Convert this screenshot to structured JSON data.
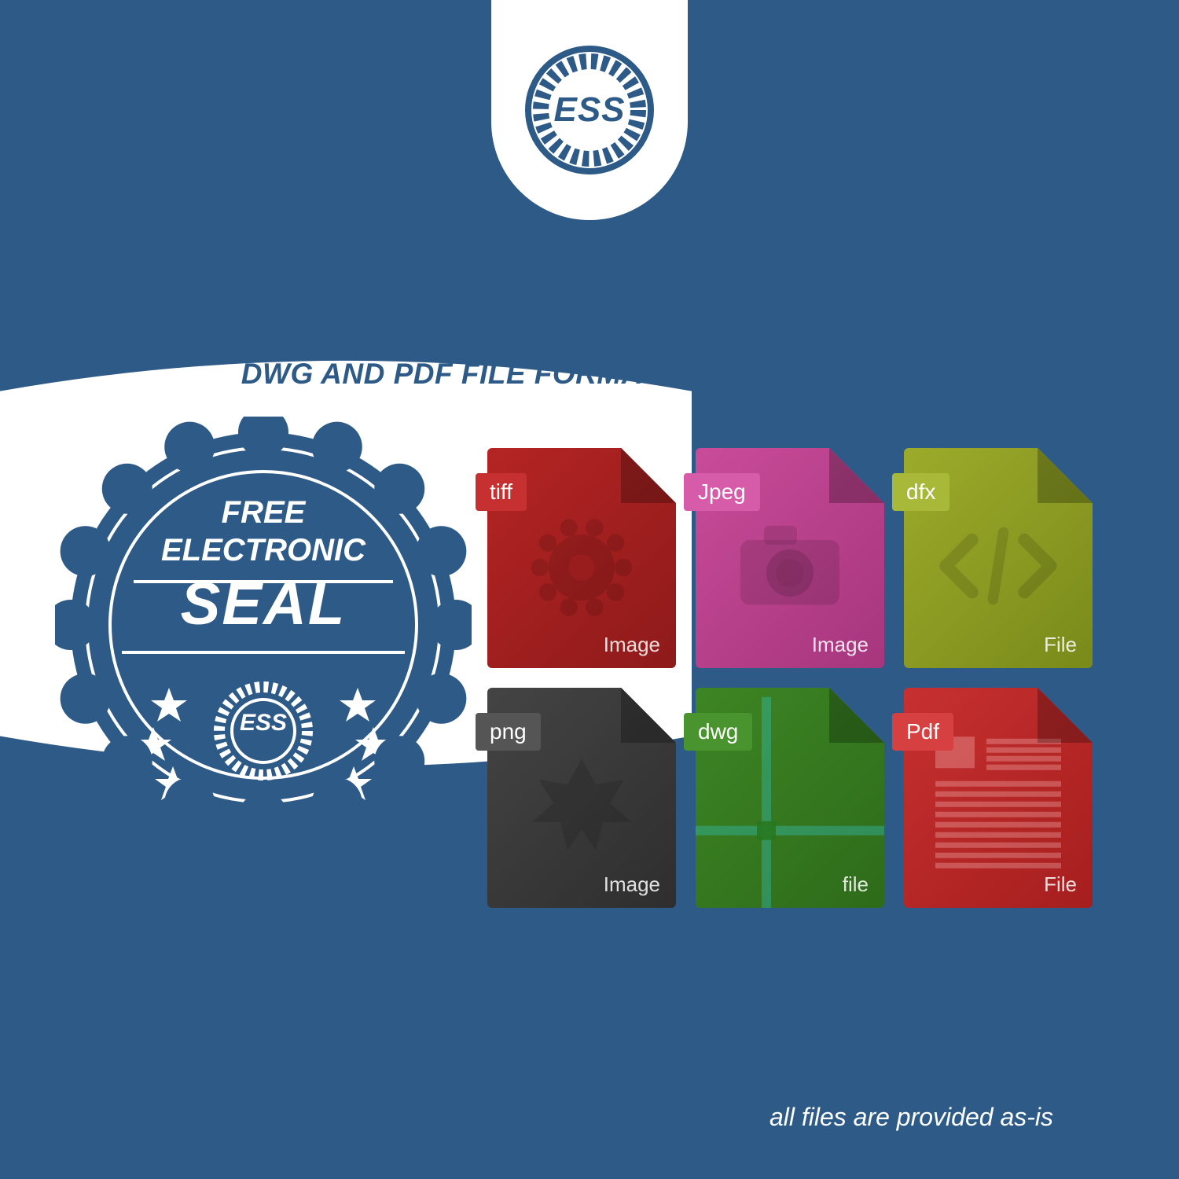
{
  "colors": {
    "primary": "#2d5a87",
    "white": "#ffffff"
  },
  "logo": {
    "text": "ESS",
    "gear_color": "#2d5a87"
  },
  "headline": "INCLUDES FREE ELECTRONIC SEALS DELIVERED IN TIF, JPG, PNG, DXF, DWG AND PDF FILE FORMATS WITH PURCHASE",
  "seal": {
    "line1": "FREE",
    "line2": "ELECTRONIC",
    "line3": "SEAL",
    "ess": "ESS",
    "fill": "#2d5a87",
    "stroke": "#ffffff"
  },
  "files": [
    {
      "label": "tiff",
      "footer": "Image",
      "bg": "#8e1a1a",
      "bg2": "#b52424",
      "tab_bg": "#c73030",
      "glyph": "gear"
    },
    {
      "label": "Jpeg",
      "footer": "Image",
      "bg": "#a6367d",
      "bg2": "#c94b99",
      "tab_bg": "#d65ba8",
      "glyph": "camera"
    },
    {
      "label": "dfx",
      "footer": "File",
      "bg": "#7a8a1a",
      "bg2": "#9cab2a",
      "tab_bg": "#a8b838",
      "glyph": "code"
    },
    {
      "label": "png",
      "footer": "Image",
      "bg": "#2e2e2e",
      "bg2": "#444444",
      "tab_bg": "#555555",
      "glyph": "burst"
    },
    {
      "label": "dwg",
      "footer": "file",
      "bg": "#2e6b1a",
      "bg2": "#3d8524",
      "tab_bg": "#4a9430",
      "glyph": "cross"
    },
    {
      "label": "Pdf",
      "footer": "File",
      "bg": "#a61e1e",
      "bg2": "#c73030",
      "tab_bg": "#d64040",
      "glyph": "doc"
    }
  ],
  "disclaimer": "all files are provided as-is"
}
